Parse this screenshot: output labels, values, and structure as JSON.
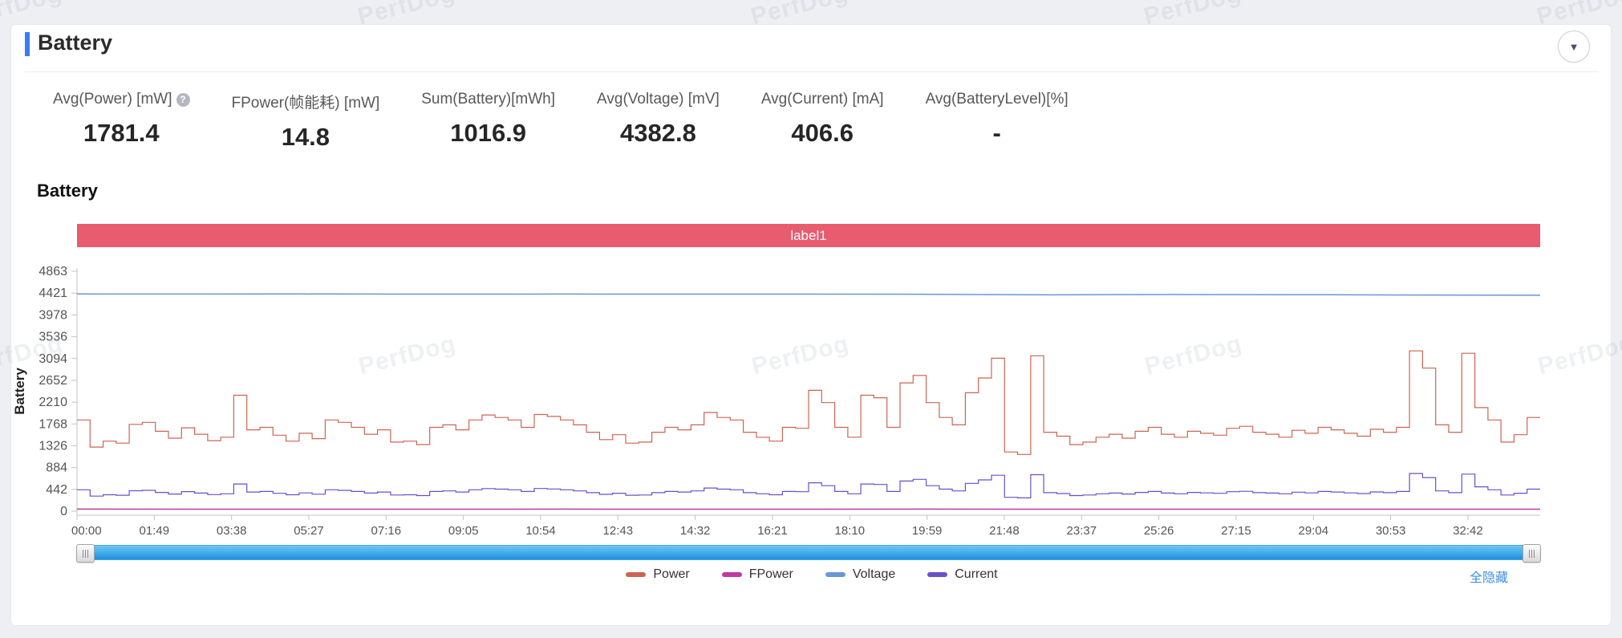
{
  "watermark_text": "PerfDog",
  "header": {
    "title": "Battery",
    "collapse_icon": "▼"
  },
  "metrics": [
    {
      "label": "Avg(Power) [mW]",
      "value": "1781.4",
      "help": true
    },
    {
      "label": "FPower(帧能耗) [mW]",
      "value": "14.8"
    },
    {
      "label": "Sum(Battery)[mWh]",
      "value": "1016.9"
    },
    {
      "label": "Avg(Voltage) [mV]",
      "value": "4382.8"
    },
    {
      "label": "Avg(Current) [mA]",
      "value": "406.6"
    },
    {
      "label": "Avg(BatteryLevel)[%]",
      "value": "-"
    }
  ],
  "hide_all_label": "全隐藏",
  "colors": {
    "accent": "#3d7af5",
    "band": "#e95b6e",
    "link": "#3e8fe0",
    "axis": "#c0c3c8",
    "tick_text": "#555555"
  },
  "chart_data": {
    "type": "line",
    "title": "Battery",
    "band_label": "label1",
    "ylabel": "Battery",
    "ylim": [
      0,
      4863
    ],
    "y_ticks": [
      4863,
      4421,
      3978,
      3536,
      3094,
      2652,
      2210,
      1768,
      1326,
      884,
      442,
      0
    ],
    "x_ticks": [
      "00:00",
      "01:49",
      "03:38",
      "05:27",
      "07:16",
      "09:05",
      "10:54",
      "12:43",
      "14:32",
      "16:21",
      "18:10",
      "19:59",
      "21:48",
      "23:37",
      "25:26",
      "27:15",
      "29:04",
      "30:53",
      "32:42"
    ],
    "grid": false,
    "legend_position": "bottom-center",
    "series": [
      {
        "name": "Power",
        "color": "#cb6552",
        "style": "step",
        "values": [
          1850,
          1300,
          1420,
          1380,
          1760,
          1800,
          1620,
          1480,
          1690,
          1560,
          1430,
          1500,
          2350,
          1650,
          1700,
          1540,
          1420,
          1580,
          1470,
          1850,
          1800,
          1700,
          1560,
          1650,
          1400,
          1420,
          1350,
          1700,
          1750,
          1650,
          1850,
          1950,
          1900,
          1850,
          1700,
          1960,
          1920,
          1850,
          1750,
          1600,
          1450,
          1550,
          1380,
          1400,
          1600,
          1700,
          1650,
          1750,
          2000,
          1900,
          1850,
          1600,
          1500,
          1420,
          1700,
          1680,
          2450,
          2200,
          1700,
          1500,
          2350,
          2300,
          1700,
          2600,
          2750,
          2200,
          1900,
          1750,
          2400,
          2700,
          3100,
          1200,
          1150,
          3150,
          1600,
          1520,
          1350,
          1400,
          1500,
          1560,
          1480,
          1620,
          1700,
          1560,
          1500,
          1620,
          1580,
          1540,
          1680,
          1720,
          1600,
          1560,
          1500,
          1640,
          1580,
          1700,
          1650,
          1580,
          1520,
          1660,
          1600,
          1700,
          3250,
          2900,
          1750,
          1600,
          3200,
          2100,
          1850,
          1400,
          1550,
          1900
        ]
      },
      {
        "name": "FPower",
        "color": "#bf3ba0",
        "style": "line",
        "values": [
          42,
          40,
          41,
          40,
          42,
          41,
          40,
          42,
          41,
          40,
          41,
          40,
          41
        ]
      },
      {
        "name": "Voltage",
        "color": "#6a96d4",
        "style": "line",
        "values": [
          4403,
          4401,
          4402,
          4400,
          4401,
          4399,
          4400,
          4397,
          4385,
          4392,
          4388,
          4381,
          4376
        ]
      },
      {
        "name": "Current",
        "color": "#6a50c7",
        "style": "step",
        "values": [
          435,
          306,
          334,
          324,
          414,
          423,
          381,
          348,
          397,
          367,
          336,
          353,
          552,
          388,
          400,
          362,
          334,
          371,
          345,
          435,
          423,
          400,
          367,
          388,
          329,
          334,
          317,
          400,
          411,
          388,
          435,
          458,
          447,
          435,
          400,
          461,
          451,
          435,
          411,
          376,
          341,
          364,
          324,
          329,
          376,
          400,
          388,
          411,
          470,
          447,
          435,
          376,
          353,
          334,
          400,
          395,
          576,
          517,
          400,
          353,
          552,
          541,
          400,
          611,
          646,
          517,
          447,
          411,
          564,
          635,
          729,
          282,
          270,
          740,
          376,
          357,
          317,
          329,
          353,
          367,
          348,
          381,
          400,
          367,
          353,
          381,
          371,
          362,
          395,
          404,
          376,
          367,
          353,
          385,
          371,
          400,
          388,
          371,
          357,
          390,
          376,
          400,
          764,
          682,
          411,
          376,
          752,
          494,
          435,
          329,
          364,
          447
        ]
      }
    ]
  }
}
